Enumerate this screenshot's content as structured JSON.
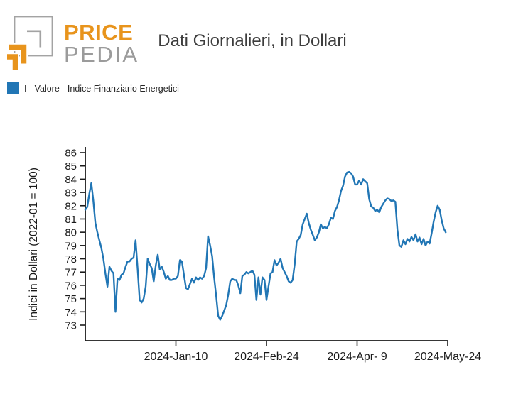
{
  "header": {
    "logo": {
      "line1": "PRICE",
      "line2": "PEDIA"
    },
    "title": "Dati Giornalieri, in Dollari"
  },
  "legend": {
    "label": "I - Valore - Indice Finanziario Energetici",
    "swatch_color": "#2176B5"
  },
  "colors": {
    "brand_orange": "#E8941C",
    "brand_gray": "#9B9B9B",
    "line_blue": "#2176B5",
    "text_dark": "#262626"
  },
  "chart_data": {
    "type": "line",
    "title": "Dati Giornalieri, in Dollari",
    "series_name": "I - Valore - Indice Finanziario Energetici",
    "xlabel": "",
    "ylabel": "Indici in Dollari (2022-01 = 100)",
    "ylim": [
      73,
      86
    ],
    "yticks": [
      73,
      74,
      75,
      76,
      77,
      78,
      79,
      80,
      81,
      82,
      83,
      84,
      85,
      86
    ],
    "xtick_labels": [
      "2024-Jan-10",
      "2024-Feb-24",
      "2024-Apr- 9",
      "2024-May-24"
    ],
    "xtick_days": [
      45,
      90,
      135,
      180
    ],
    "x_total_days": 180,
    "grid": false,
    "legend_position": "top-left",
    "line_color": "#2176B5",
    "values": [
      81.7,
      81.9,
      82.9,
      83.7,
      82.4,
      80.7,
      80.0,
      79.4,
      78.8,
      78.0,
      76.9,
      75.9,
      77.4,
      77.1,
      76.9,
      74.0,
      76.5,
      76.4,
      76.8,
      76.9,
      77.4,
      77.8,
      77.8,
      78.0,
      78.1,
      79.4,
      77.2,
      74.9,
      74.7,
      75.0,
      75.9,
      78.0,
      77.6,
      77.3,
      76.3,
      77.5,
      78.3,
      77.2,
      77.4,
      77.0,
      76.5,
      76.7,
      76.4,
      76.4,
      76.5,
      76.5,
      76.7,
      77.9,
      77.8,
      76.8,
      75.8,
      75.7,
      76.1,
      76.5,
      76.2,
      76.6,
      76.4,
      76.6,
      76.5,
      76.7,
      77.3,
      79.7,
      79.0,
      78.2,
      76.6,
      75.2,
      73.7,
      73.4,
      73.7,
      74.1,
      74.5,
      75.3,
      76.3,
      76.5,
      76.4,
      76.4,
      76.0,
      75.4,
      76.7,
      76.8,
      77.0,
      76.9,
      77.0,
      77.1,
      76.8,
      74.9,
      76.6,
      75.3,
      76.6,
      76.4,
      74.9,
      75.9,
      76.9,
      77.0,
      77.9,
      77.5,
      77.7,
      78.0,
      77.3,
      77.0,
      76.7,
      76.3,
      76.2,
      76.4,
      77.6,
      79.3,
      79.5,
      79.8,
      80.6,
      81.0,
      81.4,
      80.7,
      80.2,
      79.8,
      79.4,
      79.6,
      80.0,
      80.6,
      80.3,
      80.4,
      80.3,
      80.6,
      81.1,
      81.0,
      81.6,
      81.9,
      82.4,
      83.1,
      83.5,
      84.2,
      84.5,
      84.55,
      84.45,
      84.2,
      83.6,
      83.6,
      83.9,
      83.6,
      84.0,
      83.85,
      83.7,
      82.5,
      81.95,
      81.85,
      81.6,
      81.7,
      81.5,
      81.9,
      82.15,
      82.4,
      82.55,
      82.5,
      82.35,
      82.4,
      82.3,
      80.2,
      79.0,
      78.9,
      79.4,
      79.1,
      79.5,
      79.3,
      79.65,
      79.4,
      79.85,
      79.3,
      79.6,
      79.1,
      79.5,
      79.0,
      79.3,
      79.15,
      79.9,
      80.8,
      81.5,
      82.0,
      81.7,
      80.9,
      80.3,
      80.0
    ]
  }
}
